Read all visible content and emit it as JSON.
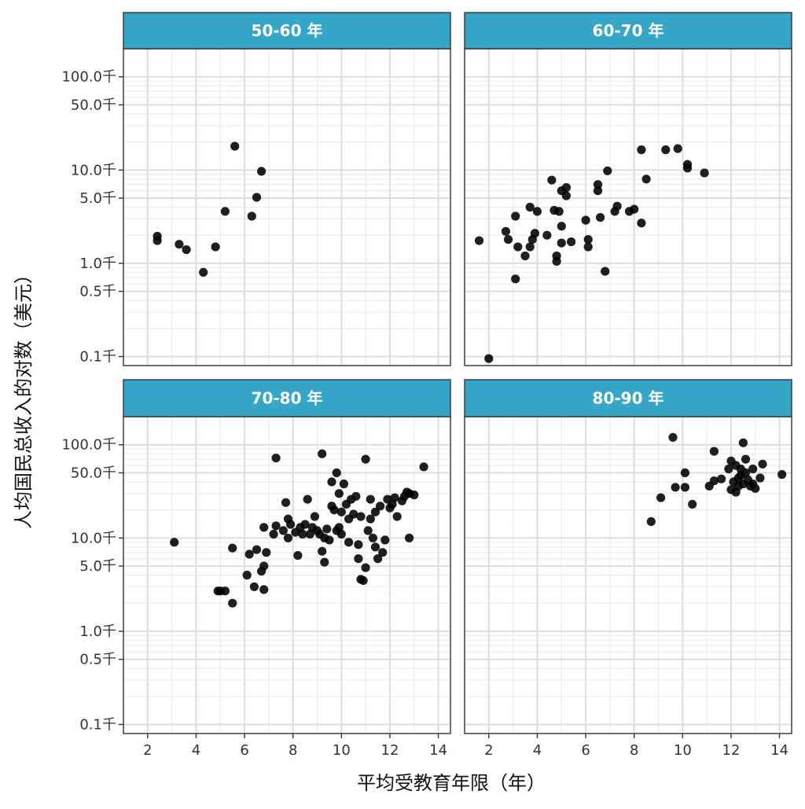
{
  "chart_data": {
    "type": "scatter",
    "title": "",
    "xlabel": "平均受教育年限（年）",
    "ylabel": "人均国民总收入的对数（美元）",
    "y_scale": "log",
    "xlim": [
      1.0,
      14.5
    ],
    "ylim": [
      0.08,
      200
    ],
    "x_ticks": [
      2,
      4,
      6,
      8,
      10,
      12,
      14
    ],
    "x_tick_labels": [
      "2",
      "4",
      "6",
      "8",
      "10",
      "12",
      "14"
    ],
    "y_ticks": [
      0.1,
      0.5,
      1.0,
      5.0,
      10.0,
      50.0,
      100.0
    ],
    "y_tick_labels": [
      "0.1千",
      "0.5千",
      "1.0千",
      "5.0千",
      "10.0千",
      "50.0千",
      "100.0千"
    ],
    "grid": true,
    "strip_color": "#36a6c8",
    "point_color": "#000000",
    "layout": "2x2 facets",
    "facets": [
      {
        "label": "50-60 年",
        "points": [
          [
            2.4,
            1.95
          ],
          [
            2.4,
            1.75
          ],
          [
            3.3,
            1.6
          ],
          [
            3.6,
            1.4
          ],
          [
            4.3,
            0.8
          ],
          [
            4.8,
            1.5
          ],
          [
            5.2,
            3.6
          ],
          [
            5.6,
            18.0
          ],
          [
            6.3,
            3.2
          ],
          [
            6.5,
            5.1
          ],
          [
            6.7,
            9.7
          ]
        ]
      },
      {
        "label": "60-70 年",
        "points": [
          [
            1.6,
            1.75
          ],
          [
            2.0,
            0.095
          ],
          [
            2.7,
            2.2
          ],
          [
            2.8,
            1.8
          ],
          [
            3.1,
            0.68
          ],
          [
            3.1,
            3.2
          ],
          [
            3.2,
            1.5
          ],
          [
            3.5,
            1.2
          ],
          [
            3.7,
            1.5
          ],
          [
            3.8,
            1.8
          ],
          [
            3.9,
            2.1
          ],
          [
            3.7,
            4.0
          ],
          [
            4.0,
            3.6
          ],
          [
            4.4,
            2.0
          ],
          [
            4.6,
            7.8
          ],
          [
            4.7,
            3.7
          ],
          [
            4.8,
            1.2
          ],
          [
            4.8,
            1.05
          ],
          [
            4.9,
            3.6
          ],
          [
            5.0,
            1.65
          ],
          [
            5.0,
            2.5
          ],
          [
            5.0,
            6.0
          ],
          [
            5.2,
            5.3
          ],
          [
            5.2,
            6.5
          ],
          [
            5.4,
            1.7
          ],
          [
            6.0,
            2.9
          ],
          [
            6.1,
            1.8
          ],
          [
            6.1,
            1.5
          ],
          [
            6.5,
            6.0
          ],
          [
            6.5,
            7.0
          ],
          [
            6.6,
            3.1
          ],
          [
            6.8,
            0.82
          ],
          [
            6.9,
            9.8
          ],
          [
            7.2,
            3.6
          ],
          [
            7.3,
            4.1
          ],
          [
            7.8,
            3.6
          ],
          [
            8.0,
            3.8
          ],
          [
            8.3,
            2.7
          ],
          [
            8.3,
            16.5
          ],
          [
            8.5,
            8.0
          ],
          [
            9.3,
            16.5
          ],
          [
            9.8,
            17.0
          ],
          [
            10.2,
            11.5
          ],
          [
            10.2,
            10.5
          ],
          [
            10.9,
            9.3
          ]
        ]
      },
      {
        "label": "70-80 年",
        "points": [
          [
            3.1,
            9.0
          ],
          [
            4.9,
            2.7
          ],
          [
            5.0,
            2.7
          ],
          [
            5.2,
            2.7
          ],
          [
            5.5,
            2.0
          ],
          [
            5.5,
            7.8
          ],
          [
            6.1,
            4.0
          ],
          [
            6.2,
            6.7
          ],
          [
            6.4,
            3.0
          ],
          [
            6.5,
            7.5
          ],
          [
            6.7,
            4.4
          ],
          [
            6.8,
            5.0
          ],
          [
            6.8,
            2.8
          ],
          [
            6.8,
            13.0
          ],
          [
            6.9,
            7.0
          ],
          [
            7.2,
            11.0
          ],
          [
            7.3,
            13.5
          ],
          [
            7.3,
            72.0
          ],
          [
            7.6,
            12.0
          ],
          [
            7.7,
            24.0
          ],
          [
            7.8,
            16.0
          ],
          [
            7.8,
            10.0
          ],
          [
            7.9,
            14.0
          ],
          [
            8.1,
            11.5
          ],
          [
            8.2,
            6.5
          ],
          [
            8.3,
            13.0
          ],
          [
            8.4,
            11.0
          ],
          [
            8.5,
            14.0
          ],
          [
            8.6,
            26.0
          ],
          [
            8.7,
            11.0
          ],
          [
            8.8,
            13.0
          ],
          [
            8.9,
            17.0
          ],
          [
            9.0,
            12.0
          ],
          [
            9.1,
            11.0
          ],
          [
            9.2,
            80.0
          ],
          [
            9.2,
            7.2
          ],
          [
            9.3,
            10.0
          ],
          [
            9.3,
            5.5
          ],
          [
            9.4,
            12.5
          ],
          [
            9.5,
            9.5
          ],
          [
            9.6,
            22.0
          ],
          [
            9.6,
            40.0
          ],
          [
            9.7,
            20.0
          ],
          [
            9.8,
            50.0
          ],
          [
            9.8,
            12.0
          ],
          [
            9.9,
            13.0
          ],
          [
            9.9,
            30.0
          ],
          [
            10.0,
            11.0
          ],
          [
            10.0,
            19.0
          ],
          [
            10.1,
            38.0
          ],
          [
            10.2,
            23.0
          ],
          [
            10.3,
            16.0
          ],
          [
            10.3,
            9.0
          ],
          [
            10.4,
            26.0
          ],
          [
            10.5,
            18.0
          ],
          [
            10.6,
            28.0
          ],
          [
            10.7,
            8.5
          ],
          [
            10.7,
            6.0
          ],
          [
            10.8,
            3.6
          ],
          [
            10.8,
            17.0
          ],
          [
            10.9,
            3.5
          ],
          [
            11.0,
            70.0
          ],
          [
            11.0,
            4.8
          ],
          [
            11.1,
            12.0
          ],
          [
            11.2,
            16.0
          ],
          [
            11.2,
            26.0
          ],
          [
            11.3,
            10.0
          ],
          [
            11.4,
            19.0
          ],
          [
            11.4,
            8.0
          ],
          [
            11.5,
            6.0
          ],
          [
            11.6,
            22.0
          ],
          [
            11.7,
            7.0
          ],
          [
            11.8,
            9.5
          ],
          [
            11.9,
            26.0
          ],
          [
            12.0,
            21.0
          ],
          [
            12.1,
            23.0
          ],
          [
            12.2,
            27.0
          ],
          [
            12.3,
            17.0
          ],
          [
            12.5,
            25.0
          ],
          [
            12.6,
            28.0
          ],
          [
            12.7,
            31.0
          ],
          [
            12.8,
            30.0
          ],
          [
            12.8,
            10.0
          ],
          [
            13.0,
            29.0
          ],
          [
            13.4,
            58.0
          ]
        ]
      },
      {
        "label": "80-90 年",
        "points": [
          [
            8.7,
            15.0
          ],
          [
            9.1,
            27.0
          ],
          [
            9.6,
            120.0
          ],
          [
            9.7,
            35.0
          ],
          [
            10.1,
            50.0
          ],
          [
            10.1,
            35.0
          ],
          [
            10.4,
            23.0
          ],
          [
            11.1,
            36.0
          ],
          [
            11.3,
            41.0
          ],
          [
            11.3,
            85.0
          ],
          [
            11.6,
            43.0
          ],
          [
            11.9,
            55.0
          ],
          [
            12.0,
            67.0
          ],
          [
            12.0,
            33.0
          ],
          [
            12.1,
            40.0
          ],
          [
            12.2,
            60.0
          ],
          [
            12.2,
            31.0
          ],
          [
            12.3,
            36.0
          ],
          [
            12.3,
            44.0
          ],
          [
            12.4,
            47.0
          ],
          [
            12.4,
            55.0
          ],
          [
            12.5,
            105.0
          ],
          [
            12.5,
            38.0
          ],
          [
            12.6,
            70.0
          ],
          [
            12.6,
            50.0
          ],
          [
            12.7,
            42.0
          ],
          [
            12.8,
            36.0
          ],
          [
            12.9,
            38.0
          ],
          [
            12.9,
            55.0
          ],
          [
            13.0,
            34.0
          ],
          [
            13.2,
            44.0
          ],
          [
            13.3,
            62.0
          ],
          [
            14.1,
            48.0
          ]
        ]
      }
    ]
  }
}
